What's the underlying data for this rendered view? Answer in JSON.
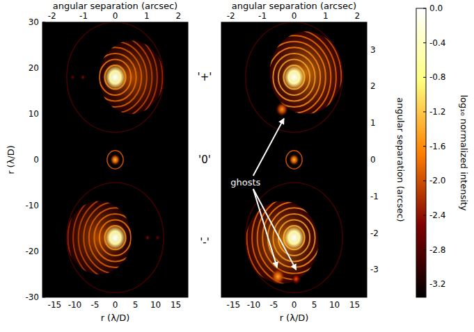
{
  "chart_data": {
    "type": "image",
    "panels": [
      {
        "xlabel": "r (λ/D)",
        "ylabel": "r (λ/D)",
        "x2label": "angular separation (arcsec)",
        "xlim": [
          -18,
          18
        ],
        "ylim": [
          -30,
          30
        ],
        "xticks": [
          -15,
          -10,
          -5,
          0,
          5,
          10,
          15
        ],
        "yticks": [
          -30,
          -20,
          -10,
          0,
          10,
          20,
          30
        ],
        "x2lim": [
          -2.3,
          2.3
        ],
        "x2ticks": [
          -2,
          -1,
          0,
          1,
          2
        ],
        "halos": [
          {
            "x": 4,
            "y": 18,
            "r": 8,
            "value": -1.9
          },
          {
            "x": -4,
            "y": -17,
            "r": 8,
            "value": -1.9
          }
        ],
        "rings": [
          {
            "x": 0,
            "y": 18,
            "r": 12,
            "value": -2.9
          },
          {
            "x": 0,
            "y": -17,
            "r": 12,
            "value": -2.9
          },
          {
            "x": 0,
            "y": 0,
            "r": 2,
            "value": -2.0
          }
        ],
        "spots": [
          {
            "x": 0,
            "y": 18,
            "r": 3,
            "value": 0
          },
          {
            "x": 0,
            "y": -17,
            "r": 3,
            "value": 0
          },
          {
            "x": 0,
            "y": 0,
            "r": 1.3,
            "value": -1.3
          },
          {
            "x": -10.5,
            "y": 18,
            "r": 0.7,
            "value": -2.5
          },
          {
            "x": -8,
            "y": 18,
            "r": 0.7,
            "value": -2.4
          },
          {
            "x": 10.5,
            "y": -17,
            "r": 0.7,
            "value": -2.5
          },
          {
            "x": 8,
            "y": -17,
            "r": 0.7,
            "value": -2.4
          }
        ]
      },
      {
        "xlabel": "r (λ/D)",
        "x2label": "angular separation (arcsec)",
        "y2label": "angular separation (arcsec)",
        "xlim": [
          -18,
          18
        ],
        "ylim": [
          -30,
          30
        ],
        "xticks": [
          -15,
          -10,
          -5,
          0,
          5,
          10,
          15
        ],
        "x2lim": [
          -2.3,
          2.3
        ],
        "x2ticks": [
          -2,
          -1,
          0,
          1,
          2
        ],
        "y2lim": [
          -3.75,
          3.75
        ],
        "y2ticks": [
          -3,
          -2,
          -1,
          0,
          1,
          2,
          3
        ],
        "halos": [
          {
            "x": 3,
            "y": 19,
            "r": 9,
            "value": -1.6
          },
          {
            "x": -3,
            "y": -18,
            "r": 9,
            "value": -1.6
          }
        ],
        "rings": [
          {
            "x": 0,
            "y": 18,
            "r": 12,
            "value": -2.9
          },
          {
            "x": 0,
            "y": -17,
            "r": 12,
            "value": -2.9
          },
          {
            "x": 0,
            "y": 0,
            "r": 2,
            "value": -2.0
          }
        ],
        "spots": [
          {
            "x": 0,
            "y": 18,
            "r": 3,
            "value": 0
          },
          {
            "x": 0,
            "y": -17,
            "r": 3,
            "value": 0
          },
          {
            "x": 0,
            "y": 0,
            "r": 1.3,
            "value": -1.3
          },
          {
            "x": -3,
            "y": 11,
            "r": 1.6,
            "value": -1.5
          },
          {
            "x": -4,
            "y": -25.5,
            "r": 1.8,
            "value": -1.4
          },
          {
            "x": 0.5,
            "y": -26,
            "r": 1.3,
            "value": -1.9
          }
        ],
        "annotation": {
          "text": "ghosts",
          "x": -12,
          "y": -5,
          "targets": [
            {
              "x": -2.5,
              "y": 9
            },
            {
              "x": -4.2,
              "y": -23.5
            },
            {
              "x": 0.5,
              "y": -24
            }
          ]
        }
      }
    ],
    "source_labels": [
      {
        "text": "'+'",
        "y": 18
      },
      {
        "text": "'0'",
        "y": 0
      },
      {
        "text": "'-'",
        "y": -18
      }
    ],
    "colorbar": {
      "label": "log₁₀ normalized intensity",
      "range": [
        -3.35,
        0
      ],
      "ticks": [
        {
          "value": 0,
          "label": "0.0"
        },
        -0.4,
        -0.8,
        -1.2,
        -1.6,
        {
          "value": -2,
          "label": "-2.0"
        },
        -2.4,
        -2.8,
        -3.2
      ]
    }
  }
}
